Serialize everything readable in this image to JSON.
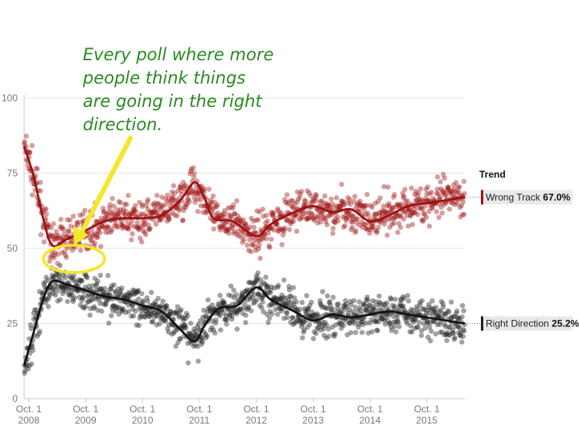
{
  "chart_data": {
    "type": "scatter",
    "ylim": [
      0,
      100
    ],
    "yticks": [
      0,
      25,
      50,
      75,
      100
    ],
    "xticks": [
      {
        "line1": "Oct. 1",
        "line2": "2008",
        "date": "2008-10-01"
      },
      {
        "line1": "Oct. 1",
        "line2": "2009",
        "date": "2009-10-01"
      },
      {
        "line1": "Oct. 1",
        "line2": "2010",
        "date": "2010-10-01"
      },
      {
        "line1": "Oct. 1",
        "line2": "2011",
        "date": "2011-10-01"
      },
      {
        "line1": "Oct. 1",
        "line2": "2012",
        "date": "2012-10-01"
      },
      {
        "line1": "Oct. 1",
        "line2": "2013",
        "date": "2013-10-01"
      },
      {
        "line1": "Oct. 1",
        "line2": "2014",
        "date": "2014-10-01"
      },
      {
        "line1": "Oct. 1",
        "line2": "2015",
        "date": "2015-10-01"
      }
    ],
    "xlim": [
      "2008-09-01",
      "2016-06-01"
    ],
    "legend": {
      "title": "Trend",
      "placement": "right"
    },
    "series": [
      {
        "name": "Wrong Track",
        "latest": "67.0%",
        "color": "#a01818",
        "trend": [
          [
            "2008-09-01",
            84
          ],
          [
            "2008-11-01",
            74
          ],
          [
            "2009-01-01",
            60
          ],
          [
            "2009-03-01",
            51
          ],
          [
            "2009-06-01",
            53
          ],
          [
            "2009-10-01",
            56
          ],
          [
            "2010-02-01",
            59
          ],
          [
            "2010-06-01",
            60
          ],
          [
            "2010-10-01",
            60
          ],
          [
            "2011-02-01",
            61
          ],
          [
            "2011-06-01",
            66
          ],
          [
            "2011-09-01",
            72
          ],
          [
            "2011-11-01",
            67
          ],
          [
            "2012-01-01",
            60
          ],
          [
            "2012-05-01",
            59
          ],
          [
            "2012-10-01",
            54
          ],
          [
            "2013-01-01",
            58
          ],
          [
            "2013-06-01",
            62
          ],
          [
            "2013-10-01",
            64
          ],
          [
            "2014-02-01",
            62
          ],
          [
            "2014-06-01",
            63
          ],
          [
            "2014-10-01",
            59
          ],
          [
            "2015-02-01",
            61
          ],
          [
            "2015-06-01",
            64
          ],
          [
            "2015-10-01",
            65
          ],
          [
            "2016-02-01",
            66
          ],
          [
            "2016-06-01",
            67
          ]
        ]
      },
      {
        "name": "Right Direction",
        "latest": "25.2%",
        "color": "#222222",
        "trend": [
          [
            "2008-09-01",
            11
          ],
          [
            "2008-11-01",
            22
          ],
          [
            "2009-01-01",
            33
          ],
          [
            "2009-03-01",
            39
          ],
          [
            "2009-06-01",
            38
          ],
          [
            "2009-10-01",
            36
          ],
          [
            "2010-02-01",
            34
          ],
          [
            "2010-06-01",
            33
          ],
          [
            "2010-10-01",
            31
          ],
          [
            "2011-02-01",
            29
          ],
          [
            "2011-06-01",
            23
          ],
          [
            "2011-09-01",
            19
          ],
          [
            "2011-11-01",
            24
          ],
          [
            "2012-02-01",
            30
          ],
          [
            "2012-06-01",
            31
          ],
          [
            "2012-10-01",
            37
          ],
          [
            "2013-01-01",
            33
          ],
          [
            "2013-06-01",
            29
          ],
          [
            "2013-10-01",
            26
          ],
          [
            "2014-02-01",
            28
          ],
          [
            "2014-06-01",
            27
          ],
          [
            "2014-10-01",
            28
          ],
          [
            "2015-02-01",
            29
          ],
          [
            "2015-06-01",
            28
          ],
          [
            "2015-10-01",
            27
          ],
          [
            "2016-02-01",
            26
          ],
          [
            "2016-06-01",
            25
          ]
        ]
      }
    ],
    "annotation": {
      "lines": [
        "Every poll where more",
        "people think things",
        "are going in the right",
        "direction."
      ],
      "color": "#2a8a1f",
      "highlight_color": "#f5e62a"
    }
  }
}
